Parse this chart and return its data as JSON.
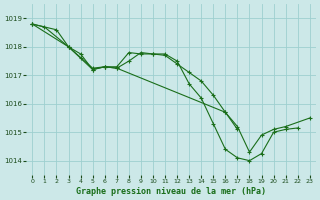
{
  "title": "Graphe pression niveau de la mer (hPa)",
  "bg_color": "#cce8e8",
  "grid_color": "#9ecfcf",
  "line_color": "#1a6e1a",
  "xlim": [
    -0.5,
    23.5
  ],
  "ylim": [
    1013.5,
    1019.5
  ],
  "yticks": [
    1014,
    1015,
    1016,
    1017,
    1018,
    1019
  ],
  "xticks": [
    0,
    1,
    2,
    3,
    4,
    5,
    6,
    7,
    8,
    9,
    10,
    11,
    12,
    13,
    14,
    15,
    16,
    17,
    18,
    19,
    20,
    21,
    22,
    23
  ],
  "series": [
    [
      0,
      1018.8
    ],
    [
      1,
      1018.7
    ],
    [
      3,
      1018.0
    ],
    [
      5,
      1017.25
    ],
    [
      6,
      1017.3
    ],
    [
      7,
      1017.3
    ],
    [
      8,
      1017.8
    ],
    [
      9,
      1017.75
    ],
    [
      10,
      1017.75
    ],
    [
      11,
      1017.7
    ],
    [
      12,
      1017.4
    ],
    [
      13,
      1017.1
    ],
    [
      14,
      1016.8
    ],
    [
      15,
      1016.3
    ],
    [
      16,
      1015.7
    ],
    [
      17,
      1015.2
    ],
    [
      18,
      1014.3
    ],
    [
      19,
      1014.9
    ],
    [
      20,
      1015.1
    ],
    [
      21,
      1015.2
    ],
    [
      23,
      1015.5
    ]
  ],
  "series2": [
    [
      0,
      1018.8
    ],
    [
      2,
      1018.6
    ],
    [
      3,
      1018.0
    ],
    [
      4,
      1017.75
    ],
    [
      5,
      1017.2
    ],
    [
      6,
      1017.3
    ],
    [
      7,
      1017.25
    ],
    [
      8,
      1017.5
    ],
    [
      9,
      1017.8
    ],
    [
      10,
      1017.75
    ],
    [
      11,
      1017.75
    ],
    [
      12,
      1017.5
    ],
    [
      13,
      1016.7
    ],
    [
      14,
      1016.2
    ],
    [
      15,
      1015.3
    ],
    [
      16,
      1014.4
    ],
    [
      17,
      1014.1
    ],
    [
      18,
      1014.0
    ],
    [
      19,
      1014.25
    ],
    [
      20,
      1015.0
    ],
    [
      21,
      1015.1
    ],
    [
      22,
      1015.15
    ]
  ],
  "series3": [
    [
      0,
      1018.8
    ],
    [
      3,
      1018.0
    ],
    [
      4,
      1017.6
    ],
    [
      5,
      1017.2
    ],
    [
      6,
      1017.3
    ],
    [
      7,
      1017.25
    ],
    [
      16,
      1015.7
    ],
    [
      17,
      1015.1
    ]
  ]
}
